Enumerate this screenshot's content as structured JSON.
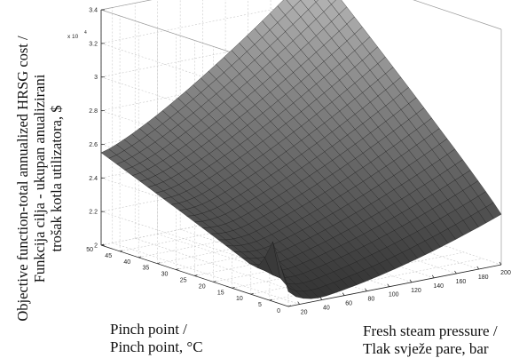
{
  "chart_data": {
    "type": "surface3d",
    "x": {
      "label_lines": [
        "Fresh steam pressure /",
        "Tlak svježe pare, bar"
      ],
      "ticks": [
        20,
        40,
        60,
        80,
        100,
        120,
        140,
        160,
        180,
        200
      ],
      "range": [
        10,
        200
      ]
    },
    "y": {
      "label_lines": [
        "Pinch point /",
        "Pinch point, °C"
      ],
      "ticks": [
        0,
        5,
        10,
        15,
        20,
        25,
        30,
        35,
        40,
        45,
        50
      ],
      "range": [
        0,
        50
      ]
    },
    "z": {
      "label_lines": [
        "Objective function-total annualized HRSG cost /",
        "Funkcija cilja - ukupan anualizirani",
        "trošak kotla utilizatora, $"
      ],
      "ticks": [
        2,
        2.2,
        2.4,
        2.6,
        2.8,
        3,
        3.2,
        3.4
      ],
      "tick_labels": [
        "2",
        "2.2",
        "2.4",
        "2.6",
        "2.8",
        "3",
        "3.2",
        "3.4"
      ],
      "multiplier_label": "x 10",
      "multiplier_exp": "4",
      "range": [
        2,
        3.4
      ]
    },
    "grid": true,
    "colormap": "gray",
    "surface_samples": [
      {
        "x": 10,
        "y": 0,
        "z": 2.06
      },
      {
        "x": 10,
        "y": 50,
        "z": 2.55
      },
      {
        "x": 45,
        "y": 0,
        "z": 2.0
      },
      {
        "x": 200,
        "y": 0,
        "z": 2.3
      },
      {
        "x": 200,
        "y": 50,
        "z": 3.4
      },
      {
        "x": 10,
        "y": 3,
        "z": 2.25
      }
    ]
  }
}
